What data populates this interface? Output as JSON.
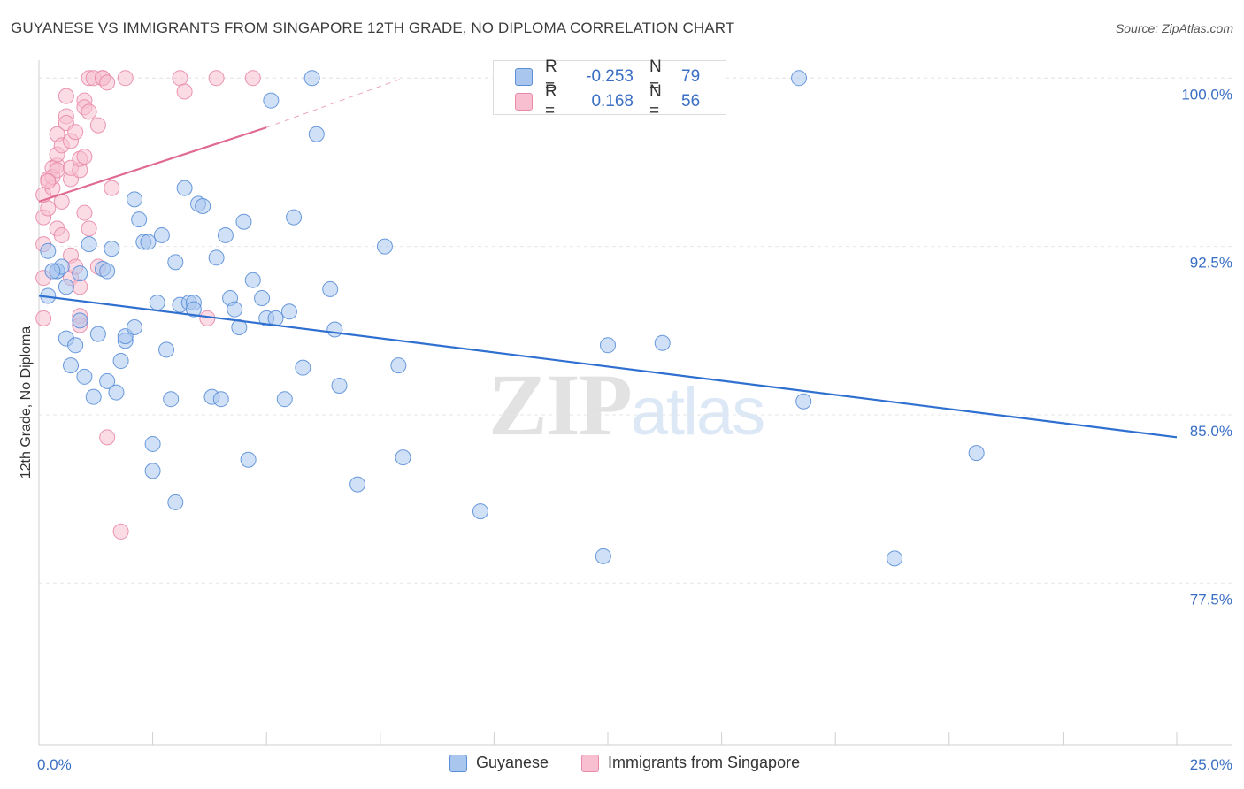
{
  "title": "GUYANESE VS IMMIGRANTS FROM SINGAPORE 12TH GRADE, NO DIPLOMA CORRELATION CHART",
  "source": "Source: ZipAtlas.com",
  "watermark": {
    "zip": "ZIP",
    "atlas": "atlas"
  },
  "stats": {
    "r_label": "R =",
    "n_label": "N =",
    "guyanese": {
      "r": "-0.253",
      "n": "79"
    },
    "singapore": {
      "r": "0.168",
      "n": "56"
    }
  },
  "legend": {
    "guyanese": "Guyanese",
    "singapore": "Immigrants from Singapore"
  },
  "colors": {
    "blue_fill": "#a9c6ef",
    "blue_stroke": "#5a8fd8",
    "blue_line": "#2f6fd0",
    "pink_fill": "#f7bfd0",
    "pink_stroke": "#e88aa8",
    "pink_line": "#e06a92",
    "axis_text": "#3a6fc4",
    "grid": "#e6e6e6"
  },
  "chart_data": {
    "type": "scatter",
    "title": "GUYANESE VS IMMIGRANTS FROM SINGAPORE 12TH GRADE, NO DIPLOMA CORRELATION CHART",
    "xlabel": "",
    "ylabel": "12th Grade, No Diploma",
    "xlim": [
      0,
      25
    ],
    "ylim": [
      70.3,
      100.8
    ],
    "x_tick_labels": [
      {
        "value": 0,
        "label": "0.0%"
      },
      {
        "value": 25,
        "label": "25.0%"
      }
    ],
    "y_ticks": [
      {
        "value": 77.5,
        "label": "77.5%"
      },
      {
        "value": 85.0,
        "label": "85.0%"
      },
      {
        "value": 92.5,
        "label": "92.5%"
      },
      {
        "value": 100.0,
        "label": "100.0%"
      }
    ],
    "series": [
      {
        "name": "Guyanese",
        "trend": {
          "x0": 0,
          "y0": 90.3,
          "x1": 25,
          "y1": 84.0
        },
        "points": [
          [
            0.2,
            92.3
          ],
          [
            0.2,
            90.3
          ],
          [
            0.4,
            91.4
          ],
          [
            0.4,
            91.4
          ],
          [
            0.5,
            91.6
          ],
          [
            0.6,
            90.7
          ],
          [
            0.6,
            88.4
          ],
          [
            0.7,
            87.2
          ],
          [
            0.8,
            88.1
          ],
          [
            0.9,
            89.2
          ],
          [
            1.0,
            86.7
          ],
          [
            1.1,
            92.6
          ],
          [
            1.2,
            85.8
          ],
          [
            1.3,
            88.6
          ],
          [
            1.4,
            91.5
          ],
          [
            1.5,
            86.5
          ],
          [
            1.5,
            91.4
          ],
          [
            1.6,
            92.4
          ],
          [
            1.7,
            86.0
          ],
          [
            1.8,
            87.4
          ],
          [
            1.9,
            88.3
          ],
          [
            1.9,
            88.5
          ],
          [
            2.1,
            94.6
          ],
          [
            2.1,
            88.9
          ],
          [
            2.2,
            93.7
          ],
          [
            2.3,
            92.7
          ],
          [
            2.4,
            92.7
          ],
          [
            2.5,
            83.7
          ],
          [
            2.5,
            82.5
          ],
          [
            2.6,
            90.0
          ],
          [
            2.7,
            93.0
          ],
          [
            2.8,
            87.9
          ],
          [
            2.9,
            85.7
          ],
          [
            3.0,
            81.1
          ],
          [
            3.0,
            91.8
          ],
          [
            3.1,
            89.9
          ],
          [
            3.2,
            95.1
          ],
          [
            3.3,
            90.0
          ],
          [
            3.4,
            90.0
          ],
          [
            3.4,
            89.7
          ],
          [
            3.5,
            94.4
          ],
          [
            3.6,
            94.3
          ],
          [
            3.8,
            85.8
          ],
          [
            3.9,
            92.0
          ],
          [
            4.0,
            85.7
          ],
          [
            4.1,
            93.0
          ],
          [
            4.2,
            90.2
          ],
          [
            4.3,
            89.7
          ],
          [
            4.4,
            88.9
          ],
          [
            4.5,
            93.6
          ],
          [
            4.6,
            83.0
          ],
          [
            4.7,
            91.0
          ],
          [
            4.9,
            90.2
          ],
          [
            5.0,
            89.3
          ],
          [
            5.1,
            99.0
          ],
          [
            5.2,
            89.3
          ],
          [
            5.4,
            85.7
          ],
          [
            5.5,
            89.6
          ],
          [
            5.6,
            93.8
          ],
          [
            5.8,
            87.1
          ],
          [
            6.0,
            100.0
          ],
          [
            6.1,
            97.5
          ],
          [
            6.4,
            90.6
          ],
          [
            6.5,
            88.8
          ],
          [
            6.6,
            86.3
          ],
          [
            7.0,
            81.9
          ],
          [
            7.6,
            92.5
          ],
          [
            7.9,
            87.2
          ],
          [
            8.0,
            83.1
          ],
          [
            9.7,
            80.7
          ],
          [
            12.4,
            78.7
          ],
          [
            12.5,
            88.1
          ],
          [
            13.7,
            88.2
          ],
          [
            16.7,
            100.0
          ],
          [
            16.8,
            85.6
          ],
          [
            18.8,
            78.6
          ],
          [
            20.6,
            83.3
          ],
          [
            0.3,
            91.4
          ],
          [
            0.9,
            91.3
          ]
        ]
      },
      {
        "name": "Immigrants from Singapore",
        "trend": {
          "x0": 0,
          "y0": 94.5,
          "x1": 5,
          "y1": 97.8
        },
        "trend_extension": {
          "x0": 5,
          "y0": 97.8,
          "x1": 8,
          "y1": 100.0
        },
        "points": [
          [
            0.1,
            89.3
          ],
          [
            0.1,
            91.1
          ],
          [
            0.1,
            92.6
          ],
          [
            0.1,
            93.8
          ],
          [
            0.1,
            94.8
          ],
          [
            0.2,
            94.2
          ],
          [
            0.2,
            95.5
          ],
          [
            0.3,
            96.0
          ],
          [
            0.3,
            95.1
          ],
          [
            0.3,
            95.6
          ],
          [
            0.4,
            96.1
          ],
          [
            0.4,
            96.6
          ],
          [
            0.4,
            95.9
          ],
          [
            0.4,
            93.3
          ],
          [
            0.4,
            97.5
          ],
          [
            0.5,
            97.0
          ],
          [
            0.5,
            94.5
          ],
          [
            0.6,
            98.3
          ],
          [
            0.6,
            98.0
          ],
          [
            0.6,
            99.2
          ],
          [
            0.7,
            97.2
          ],
          [
            0.7,
            95.5
          ],
          [
            0.7,
            96.0
          ],
          [
            0.7,
            92.1
          ],
          [
            0.7,
            91.1
          ],
          [
            0.8,
            97.6
          ],
          [
            0.8,
            91.6
          ],
          [
            0.9,
            95.9
          ],
          [
            0.9,
            96.4
          ],
          [
            0.9,
            90.7
          ],
          [
            0.9,
            89.4
          ],
          [
            0.9,
            89.0
          ],
          [
            1.0,
            99.0
          ],
          [
            1.0,
            98.7
          ],
          [
            1.0,
            96.5
          ],
          [
            1.0,
            94.0
          ],
          [
            1.1,
            98.5
          ],
          [
            1.1,
            93.3
          ],
          [
            1.1,
            100.0
          ],
          [
            1.2,
            100.0
          ],
          [
            1.3,
            97.9
          ],
          [
            1.3,
            91.6
          ],
          [
            1.4,
            100.0
          ],
          [
            1.4,
            100.0
          ],
          [
            1.5,
            84.0
          ],
          [
            1.5,
            99.8
          ],
          [
            1.6,
            95.1
          ],
          [
            1.8,
            79.8
          ],
          [
            1.9,
            100.0
          ],
          [
            3.1,
            100.0
          ],
          [
            3.2,
            99.4
          ],
          [
            3.7,
            89.3
          ],
          [
            3.9,
            100.0
          ],
          [
            4.7,
            100.0
          ],
          [
            0.5,
            93.0
          ],
          [
            0.2,
            95.4
          ]
        ]
      }
    ]
  }
}
